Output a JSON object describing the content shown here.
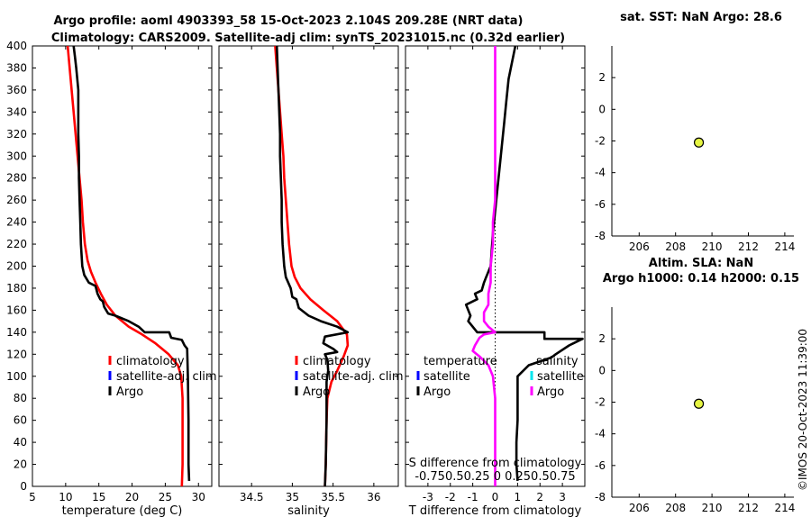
{
  "header": {
    "line1": "Argo profile: aoml 4903393_58 15-Oct-2023 2.104S 209.28E (NRT data)",
    "line2": "Climatology: CARS2009. Satellite-adj clim: synTS_20231015.nc (0.32d earlier)"
  },
  "stamp": "©IMOS 20-Oct-2023 11:39:00",
  "chart_data": [
    {
      "id": "temperature",
      "type": "line",
      "xlabel": "temperature (deg C)",
      "ylabel": "",
      "xlim": [
        5,
        32
      ],
      "ylim": [
        400,
        0
      ],
      "xticks": [
        5,
        10,
        15,
        20,
        25,
        30
      ],
      "yticks": [
        0,
        20,
        40,
        60,
        80,
        100,
        120,
        140,
        160,
        180,
        200,
        220,
        240,
        260,
        280,
        300,
        320,
        340,
        360,
        380,
        400
      ],
      "legend": [
        "climatology",
        "satellite-adj. clim",
        "Argo"
      ],
      "series": [
        {
          "name": "climatology",
          "color": "#ff0000",
          "points": [
            [
              27.5,
              0
            ],
            [
              27.6,
              20
            ],
            [
              27.6,
              50
            ],
            [
              27.6,
              80
            ],
            [
              27.4,
              100
            ],
            [
              26.9,
              110
            ],
            [
              25.5,
              120
            ],
            [
              23.5,
              130
            ],
            [
              21.5,
              138
            ],
            [
              19.5,
              145
            ],
            [
              17.5,
              155
            ],
            [
              16.2,
              165
            ],
            [
              15.3,
              175
            ],
            [
              14.5,
              185
            ],
            [
              13.8,
              195
            ],
            [
              13.3,
              205
            ],
            [
              12.9,
              220
            ],
            [
              12.6,
              240
            ],
            [
              12.4,
              260
            ],
            [
              12.1,
              280
            ],
            [
              11.8,
              300
            ],
            [
              11.5,
              320
            ],
            [
              11.2,
              340
            ],
            [
              10.9,
              360
            ],
            [
              10.6,
              380
            ],
            [
              10.3,
              400
            ]
          ]
        },
        {
          "name": "satellite-adj. clim",
          "color": "#0000ff",
          "points": []
        },
        {
          "name": "Argo",
          "color": "#000000",
          "points": [
            [
              28.6,
              5
            ],
            [
              28.5,
              20
            ],
            [
              28.5,
              60
            ],
            [
              28.4,
              100
            ],
            [
              28.3,
              125
            ],
            [
              27.9,
              128
            ],
            [
              27.5,
              133
            ],
            [
              25.9,
              135
            ],
            [
              25.6,
              140
            ],
            [
              21.9,
              140
            ],
            [
              21.0,
              145
            ],
            [
              19.5,
              150
            ],
            [
              17.5,
              155
            ],
            [
              16.4,
              157
            ],
            [
              15.8,
              163
            ],
            [
              15.6,
              168
            ],
            [
              15.2,
              170
            ],
            [
              14.8,
              175
            ],
            [
              14.5,
              182
            ],
            [
              13.5,
              185
            ],
            [
              12.8,
              192
            ],
            [
              12.5,
              200
            ],
            [
              12.3,
              220
            ],
            [
              12.2,
              240
            ],
            [
              12.1,
              260
            ],
            [
              12.0,
              280
            ],
            [
              12.0,
              300
            ],
            [
              11.9,
              320
            ],
            [
              11.9,
              340
            ],
            [
              11.9,
              360
            ],
            [
              11.6,
              380
            ],
            [
              11.4,
              390
            ],
            [
              11.2,
              400
            ]
          ]
        }
      ]
    },
    {
      "id": "salinity",
      "type": "line",
      "xlabel": "salinity",
      "ylabel": "",
      "xlim": [
        34.1,
        36.3
      ],
      "ylim": [
        400,
        0
      ],
      "xticks": [
        34.5,
        35,
        35.5,
        36
      ],
      "yticks": [
        0,
        20,
        40,
        60,
        80,
        100,
        120,
        140,
        160,
        180,
        200,
        220,
        240,
        260,
        280,
        300,
        320,
        340,
        360,
        380,
        400
      ],
      "legend": [
        "climatology",
        "satellite-adj. clim",
        "Argo"
      ],
      "series": [
        {
          "name": "climatology",
          "color": "#ff0000",
          "points": [
            [
              35.4,
              0
            ],
            [
              35.41,
              20
            ],
            [
              35.42,
              60
            ],
            [
              35.43,
              80
            ],
            [
              35.48,
              95
            ],
            [
              35.55,
              105
            ],
            [
              35.63,
              118
            ],
            [
              35.68,
              128
            ],
            [
              35.67,
              138
            ],
            [
              35.55,
              150
            ],
            [
              35.38,
              160
            ],
            [
              35.22,
              170
            ],
            [
              35.1,
              180
            ],
            [
              35.03,
              190
            ],
            [
              34.99,
              200
            ],
            [
              34.96,
              220
            ],
            [
              34.94,
              240
            ],
            [
              34.92,
              260
            ],
            [
              34.9,
              280
            ],
            [
              34.89,
              300
            ],
            [
              34.87,
              320
            ],
            [
              34.85,
              340
            ],
            [
              34.83,
              360
            ],
            [
              34.81,
              380
            ],
            [
              34.79,
              400
            ]
          ]
        },
        {
          "name": "satellite-adj. clim",
          "color": "#0000ff",
          "points": []
        },
        {
          "name": "Argo",
          "color": "#000000",
          "points": [
            [
              35.4,
              0
            ],
            [
              35.41,
              20
            ],
            [
              35.42,
              60
            ],
            [
              35.42,
              80
            ],
            [
              35.42,
              95
            ],
            [
              35.44,
              105
            ],
            [
              35.43,
              115
            ],
            [
              35.4,
              120
            ],
            [
              35.55,
              122
            ],
            [
              35.5,
              125
            ],
            [
              35.38,
              130
            ],
            [
              35.4,
              136
            ],
            [
              35.68,
              140
            ],
            [
              35.55,
              145
            ],
            [
              35.35,
              150
            ],
            [
              35.2,
              155
            ],
            [
              35.08,
              162
            ],
            [
              35.05,
              170
            ],
            [
              35.0,
              172
            ],
            [
              34.98,
              180
            ],
            [
              34.92,
              190
            ],
            [
              34.9,
              200
            ],
            [
              34.88,
              220
            ],
            [
              34.87,
              240
            ],
            [
              34.87,
              260
            ],
            [
              34.86,
              280
            ],
            [
              34.85,
              300
            ],
            [
              34.85,
              320
            ],
            [
              34.84,
              340
            ],
            [
              34.83,
              360
            ],
            [
              34.82,
              380
            ],
            [
              34.81,
              400
            ]
          ]
        }
      ]
    },
    {
      "id": "difference",
      "type": "line",
      "xlabel": "T difference from climatology",
      "x2label": "S difference from climatology",
      "x2ticks": "-0.750.50.25 0 0.250.50.75",
      "ylabel": "",
      "xlim": [
        -4,
        4
      ],
      "ylim": [
        400,
        0
      ],
      "xticks": [
        -3,
        -2,
        -1,
        0,
        1,
        2,
        3
      ],
      "yticks": [
        0,
        20,
        40,
        60,
        80,
        100,
        120,
        140,
        160,
        180,
        200,
        220,
        240,
        260,
        280,
        300,
        320,
        340,
        360,
        380,
        400
      ],
      "legend_title_left": "temperature",
      "legend_title_right": "salinity",
      "legend": [
        "satellite",
        "Argo",
        "satellite",
        "Argo"
      ],
      "series": [
        {
          "name": "T Argo",
          "color": "#000000",
          "points": [
            [
              1.0,
              5
            ],
            [
              0.95,
              20
            ],
            [
              0.95,
              40
            ],
            [
              1.0,
              60
            ],
            [
              1.0,
              80
            ],
            [
              1.0,
              100
            ],
            [
              1.5,
              110
            ],
            [
              2.5,
              117
            ],
            [
              2.7,
              120
            ],
            [
              3.3,
              128
            ],
            [
              3.9,
              134
            ],
            [
              2.2,
              134
            ],
            [
              2.2,
              140
            ],
            [
              -0.8,
              140
            ],
            [
              -1.2,
              150
            ],
            [
              -1.1,
              155
            ],
            [
              -1.3,
              165
            ],
            [
              -0.8,
              170
            ],
            [
              -0.9,
              175
            ],
            [
              -0.6,
              178
            ],
            [
              -0.5,
              185
            ],
            [
              -0.4,
              190
            ],
            [
              -0.2,
              200
            ],
            [
              -0.1,
              230
            ],
            [
              0.0,
              250
            ],
            [
              0.1,
              270
            ],
            [
              0.2,
              290
            ],
            [
              0.3,
              310
            ],
            [
              0.4,
              330
            ],
            [
              0.5,
              350
            ],
            [
              0.6,
              370
            ],
            [
              0.7,
              380
            ],
            [
              0.8,
              390
            ],
            [
              0.9,
              400
            ]
          ]
        },
        {
          "name": "S Argo",
          "color": "#ff00ff",
          "points": [
            [
              0.0,
              0
            ],
            [
              0.0,
              40
            ],
            [
              0.0,
              80
            ],
            [
              -0.1,
              100
            ],
            [
              -0.3,
              110
            ],
            [
              -0.7,
              118
            ],
            [
              -1.0,
              123
            ],
            [
              -0.9,
              128
            ],
            [
              -0.7,
              135
            ],
            [
              -0.5,
              138
            ],
            [
              0.0,
              140
            ],
            [
              -0.3,
              145
            ],
            [
              -0.5,
              150
            ],
            [
              -0.5,
              158
            ],
            [
              -0.3,
              165
            ],
            [
              -0.3,
              175
            ],
            [
              -0.2,
              185
            ],
            [
              -0.2,
              200
            ],
            [
              -0.1,
              220
            ],
            [
              -0.1,
              240
            ],
            [
              0.0,
              260
            ],
            [
              0.0,
              280
            ],
            [
              0.0,
              300
            ],
            [
              0.0,
              320
            ],
            [
              0.0,
              340
            ],
            [
              0.0,
              360
            ],
            [
              0.0,
              380
            ],
            [
              0.0,
              400
            ]
          ]
        },
        {
          "name": "T satellite",
          "color": "#0000ff",
          "points": []
        },
        {
          "name": "S satellite",
          "color": "#00e5ee",
          "points": []
        }
      ]
    },
    {
      "id": "sst",
      "type": "scatter",
      "title": "sat. SST: NaN Argo: 28.6",
      "xlim": [
        204.5,
        214.5
      ],
      "ylim": [
        -8,
        4
      ],
      "xticks": [
        206,
        208,
        210,
        212,
        214
      ],
      "yticks": [
        -8,
        -6,
        -4,
        -2,
        0,
        2
      ],
      "points": [
        [
          209.28,
          -2.1
        ]
      ],
      "marker_color": "#e6f542"
    },
    {
      "id": "sla",
      "type": "scatter",
      "title_line1": "Altim. SLA: NaN",
      "title_line2": "Argo h1000: 0.14 h2000: 0.15",
      "xlim": [
        204.5,
        214.5
      ],
      "ylim": [
        -8,
        4
      ],
      "xticks": [
        206,
        208,
        210,
        212,
        214
      ],
      "yticks": [
        -8,
        -6,
        -4,
        -2,
        0,
        2
      ],
      "points": [
        [
          209.28,
          -2.1
        ]
      ],
      "marker_color": "#e6f542"
    }
  ]
}
